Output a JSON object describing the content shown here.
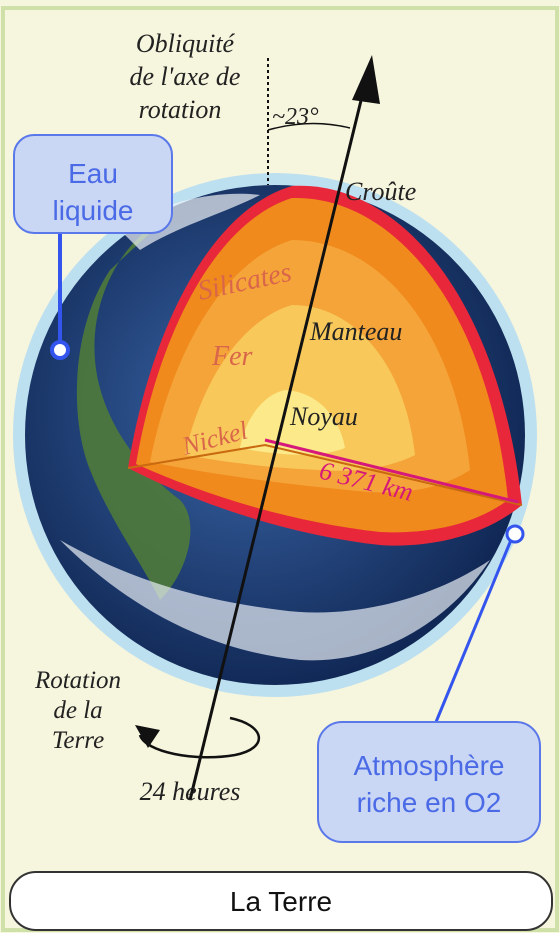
{
  "diagram": {
    "axis_label": [
      "Obliquité",
      "de l'axe de",
      "rotation"
    ],
    "angle": "~23°",
    "crust": "Croûte",
    "water": [
      "Eau",
      "liquide"
    ],
    "silicates": "Silicates",
    "mantle": "Manteau",
    "iron": "Fer",
    "core": "Noyau",
    "nickel": "Nickel",
    "radius": "6 371 km",
    "rotation": [
      "Rotation",
      "de la",
      "Terre"
    ],
    "period": "24 heures",
    "atmosphere": [
      "Atmosphère",
      "riche en O2"
    ],
    "caption": "La Terre"
  }
}
